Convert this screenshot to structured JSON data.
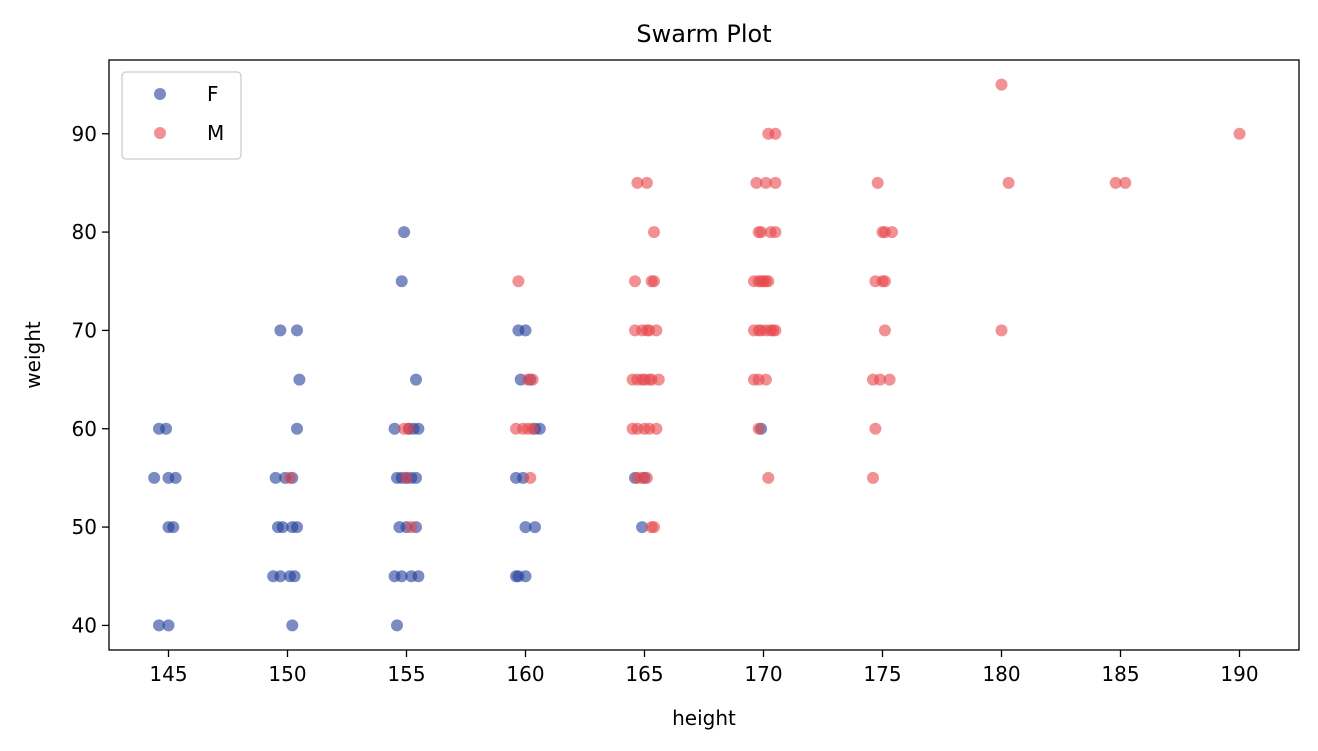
{
  "chart_data": {
    "type": "scatter",
    "title": "Swarm Plot",
    "xlabel": "height",
    "ylabel": "weight",
    "xlim": [
      142.5,
      192.5
    ],
    "ylim": [
      37.5,
      97.5
    ],
    "xticks": [
      145,
      150,
      155,
      160,
      165,
      170,
      175,
      180,
      185,
      190
    ],
    "yticks": [
      40,
      50,
      60,
      70,
      80,
      90
    ],
    "grid": false,
    "legend_position": "top-left",
    "series": [
      {
        "name": "F",
        "color": "#23409a",
        "points": [
          [
            144.6,
            60
          ],
          [
            144.9,
            60
          ],
          [
            144.4,
            55
          ],
          [
            145.0,
            55
          ],
          [
            145.3,
            55
          ],
          [
            145.0,
            50
          ],
          [
            145.2,
            50
          ],
          [
            144.6,
            40
          ],
          [
            145.0,
            40
          ],
          [
            149.7,
            70
          ],
          [
            150.4,
            70
          ],
          [
            150.5,
            65
          ],
          [
            150.4,
            60
          ],
          [
            149.5,
            55
          ],
          [
            149.9,
            55
          ],
          [
            150.2,
            55
          ],
          [
            149.6,
            50
          ],
          [
            149.8,
            50
          ],
          [
            150.2,
            50
          ],
          [
            150.4,
            50
          ],
          [
            149.4,
            45
          ],
          [
            149.7,
            45
          ],
          [
            150.1,
            45
          ],
          [
            150.3,
            45
          ],
          [
            150.2,
            40
          ],
          [
            154.9,
            80
          ],
          [
            154.8,
            75
          ],
          [
            155.4,
            65
          ],
          [
            154.5,
            60
          ],
          [
            155.1,
            60
          ],
          [
            155.3,
            60
          ],
          [
            155.5,
            60
          ],
          [
            154.6,
            55
          ],
          [
            154.8,
            55
          ],
          [
            155.0,
            55
          ],
          [
            155.2,
            55
          ],
          [
            155.4,
            55
          ],
          [
            154.7,
            50
          ],
          [
            155.0,
            50
          ],
          [
            155.4,
            50
          ],
          [
            154.5,
            45
          ],
          [
            154.8,
            45
          ],
          [
            155.2,
            45
          ],
          [
            155.5,
            45
          ],
          [
            154.6,
            40
          ],
          [
            159.7,
            70
          ],
          [
            160.0,
            70
          ],
          [
            159.8,
            65
          ],
          [
            160.2,
            65
          ],
          [
            160.4,
            60
          ],
          [
            160.6,
            60
          ],
          [
            159.6,
            55
          ],
          [
            159.9,
            55
          ],
          [
            160.0,
            50
          ],
          [
            160.4,
            50
          ],
          [
            159.6,
            45
          ],
          [
            159.7,
            45
          ],
          [
            160.0,
            45
          ],
          [
            164.6,
            55
          ],
          [
            165.0,
            55
          ],
          [
            164.9,
            50
          ],
          [
            169.9,
            60
          ]
        ]
      },
      {
        "name": "M",
        "color": "#e8474c",
        "points": [
          [
            180.0,
            95
          ],
          [
            190.0,
            90
          ],
          [
            180.3,
            85
          ],
          [
            184.8,
            85
          ],
          [
            185.2,
            85
          ],
          [
            180.0,
            70
          ],
          [
            159.7,
            75
          ],
          [
            159.6,
            60
          ],
          [
            159.9,
            60
          ],
          [
            160.1,
            60
          ],
          [
            160.3,
            60
          ],
          [
            160.1,
            65
          ],
          [
            160.3,
            65
          ],
          [
            160.2,
            55
          ],
          [
            164.7,
            85
          ],
          [
            165.1,
            85
          ],
          [
            165.4,
            80
          ],
          [
            164.6,
            75
          ],
          [
            165.3,
            75
          ],
          [
            165.4,
            75
          ],
          [
            164.6,
            70
          ],
          [
            164.9,
            70
          ],
          [
            165.1,
            70
          ],
          [
            165.2,
            70
          ],
          [
            165.5,
            70
          ],
          [
            164.5,
            65
          ],
          [
            164.7,
            65
          ],
          [
            164.9,
            65
          ],
          [
            165.0,
            65
          ],
          [
            165.2,
            65
          ],
          [
            165.3,
            65
          ],
          [
            165.6,
            65
          ],
          [
            164.5,
            60
          ],
          [
            164.7,
            60
          ],
          [
            165.0,
            60
          ],
          [
            165.2,
            60
          ],
          [
            165.5,
            60
          ],
          [
            164.7,
            55
          ],
          [
            164.9,
            55
          ],
          [
            165.1,
            55
          ],
          [
            165.3,
            50
          ],
          [
            165.4,
            50
          ],
          [
            170.2,
            90
          ],
          [
            170.5,
            90
          ],
          [
            169.7,
            85
          ],
          [
            170.1,
            85
          ],
          [
            170.5,
            85
          ],
          [
            169.8,
            80
          ],
          [
            169.9,
            80
          ],
          [
            170.3,
            80
          ],
          [
            170.5,
            80
          ],
          [
            169.6,
            75
          ],
          [
            169.8,
            75
          ],
          [
            169.9,
            75
          ],
          [
            170.0,
            75
          ],
          [
            170.1,
            75
          ],
          [
            170.2,
            75
          ],
          [
            169.6,
            70
          ],
          [
            169.8,
            70
          ],
          [
            169.9,
            70
          ],
          [
            170.1,
            70
          ],
          [
            170.3,
            70
          ],
          [
            170.4,
            70
          ],
          [
            170.5,
            70
          ],
          [
            169.6,
            65
          ],
          [
            169.8,
            65
          ],
          [
            170.1,
            65
          ],
          [
            169.8,
            60
          ],
          [
            170.2,
            55
          ],
          [
            174.8,
            85
          ],
          [
            175.0,
            80
          ],
          [
            175.1,
            80
          ],
          [
            175.4,
            80
          ],
          [
            174.7,
            75
          ],
          [
            175.0,
            75
          ],
          [
            175.1,
            75
          ],
          [
            175.1,
            70
          ],
          [
            174.6,
            65
          ],
          [
            174.9,
            65
          ],
          [
            175.3,
            65
          ],
          [
            174.7,
            60
          ],
          [
            174.6,
            55
          ],
          [
            154.9,
            60
          ],
          [
            155.1,
            60
          ],
          [
            155.0,
            55
          ],
          [
            155.2,
            50
          ],
          [
            150.1,
            55
          ]
        ]
      }
    ]
  }
}
